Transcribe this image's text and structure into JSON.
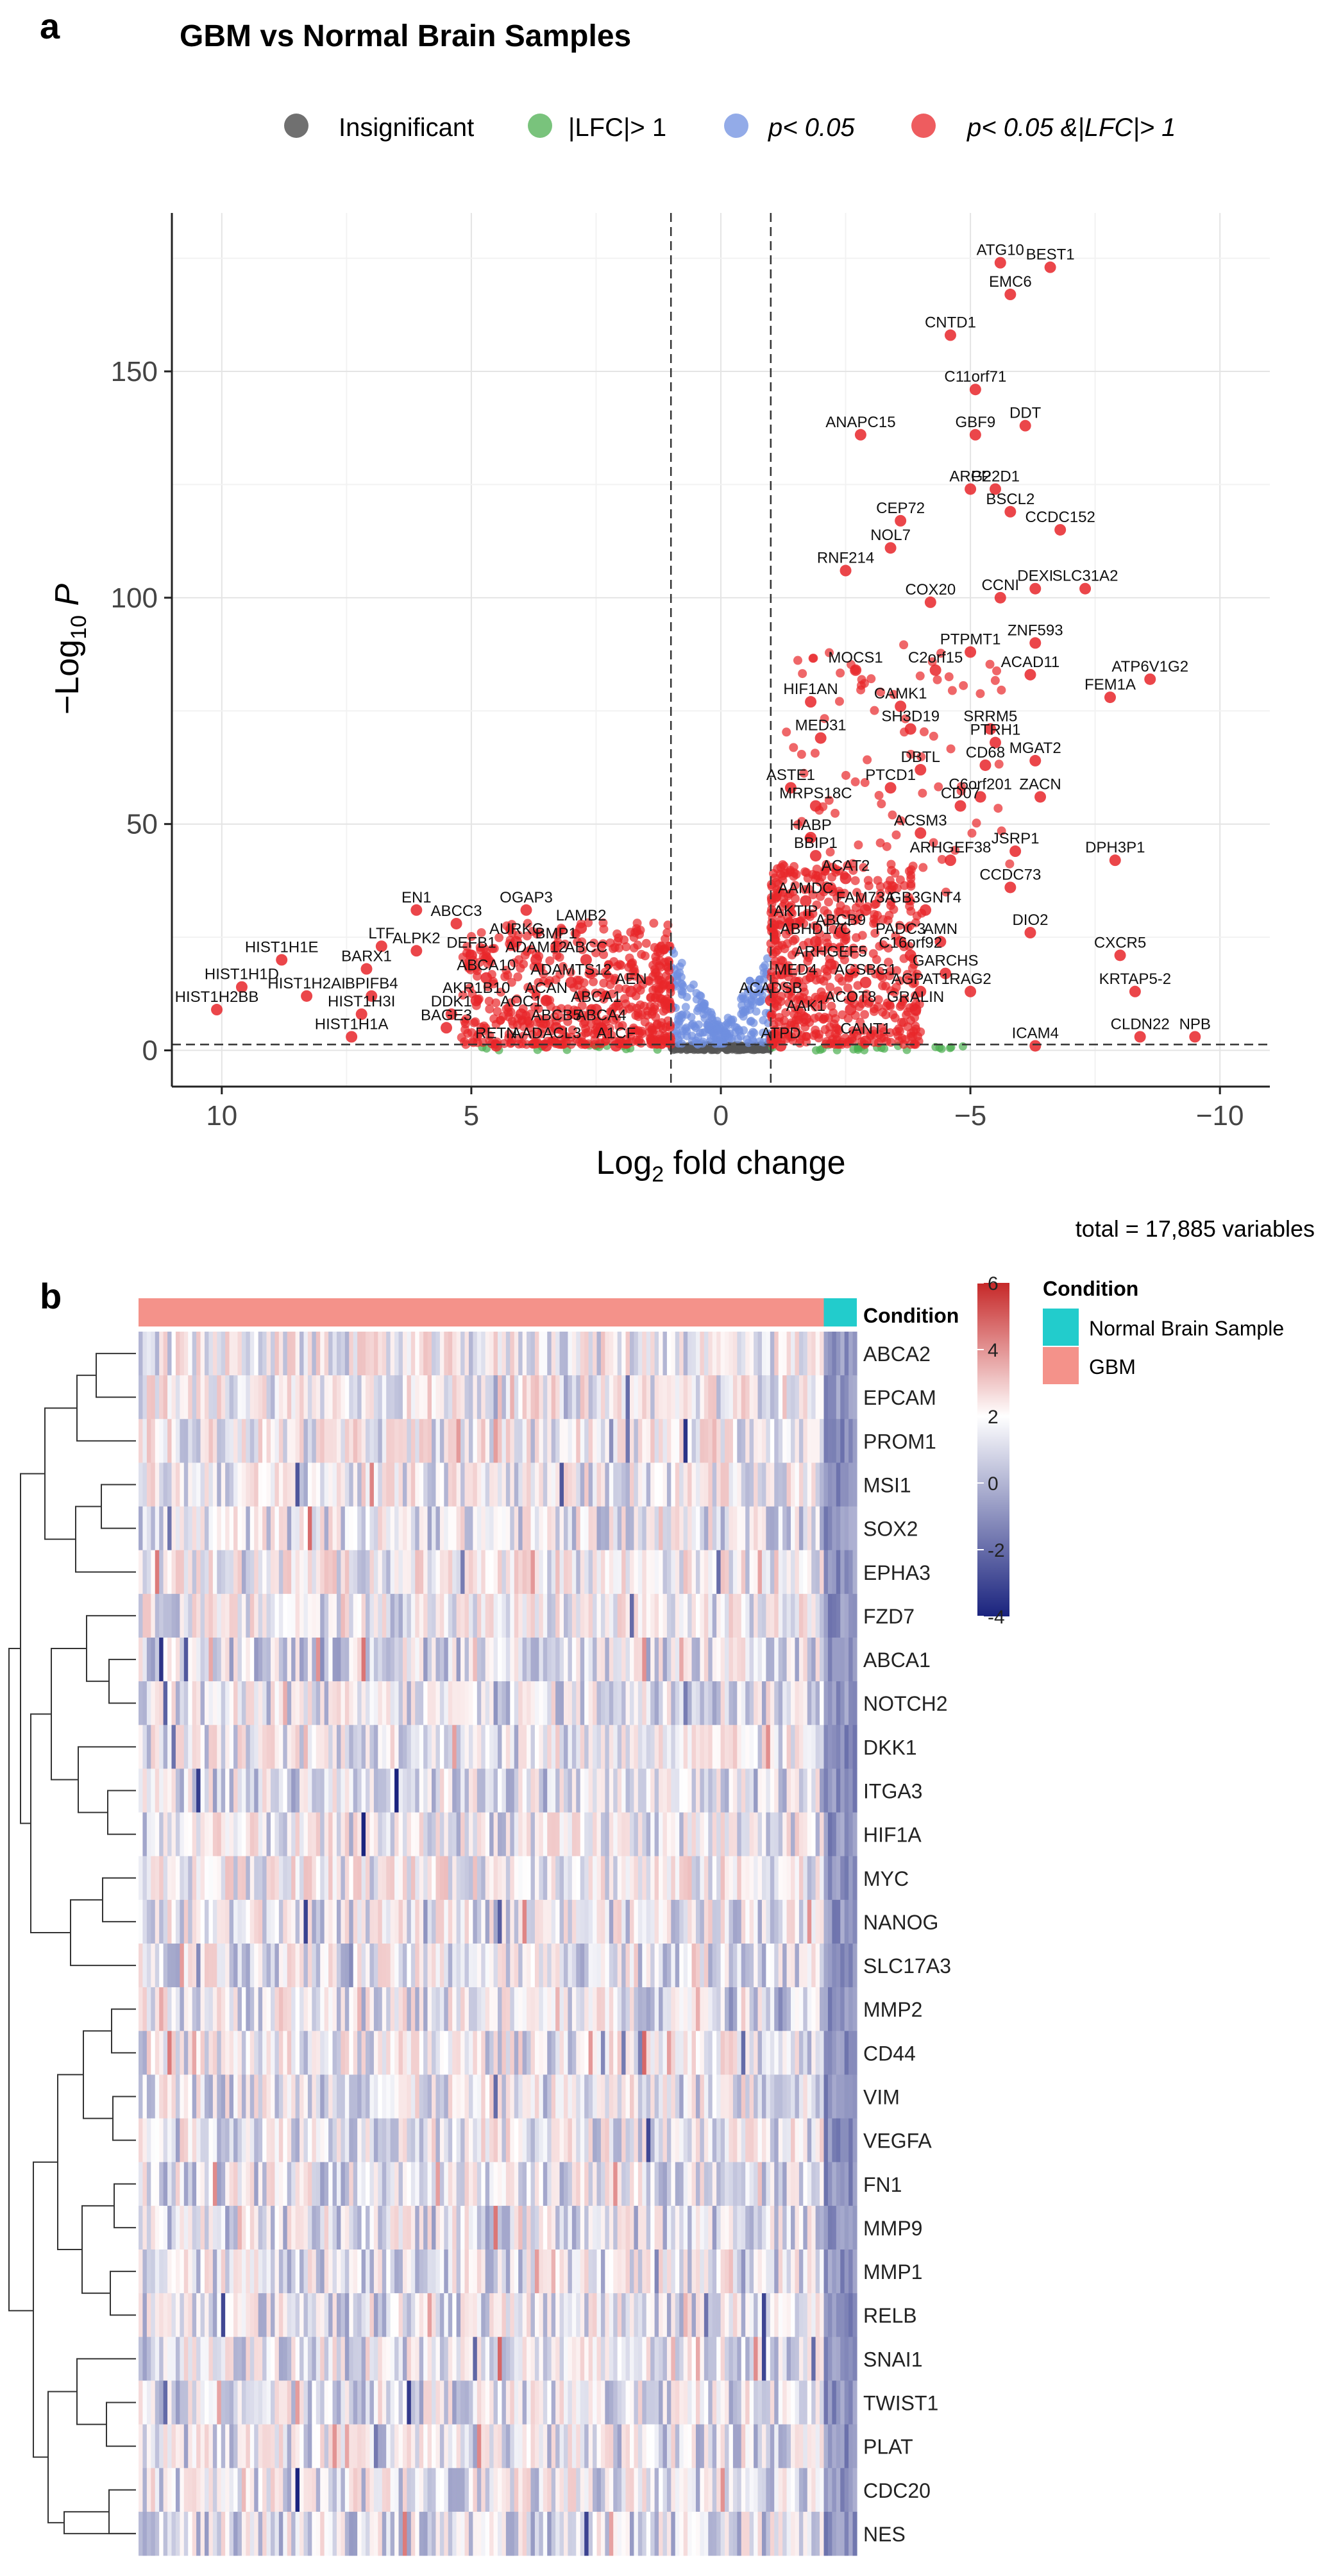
{
  "panel_a": {
    "letter": "a",
    "title": "GBM vs Normal Brain Samples",
    "legend": [
      {
        "label": "Insignificant",
        "color": "#606060"
      },
      {
        "label": "|LFC|> 1",
        "color": "#4caf50"
      },
      {
        "label": "p< 0.05",
        "color": "#6f8fe0"
      },
      {
        "label": "p< 0.05 &|LFC|> 1",
        "color": "#e8262a"
      }
    ],
    "footer": "total = 17,885 variables"
  },
  "panel_b": {
    "letter": "b",
    "annotation_label": "Condition",
    "legend_title": "Condition",
    "legend": [
      {
        "label": "Normal Brain Sample",
        "color": "#22cccc"
      },
      {
        "label": "GBM",
        "color": "#f4928a"
      }
    ],
    "scale_ticks": [
      "6",
      "4",
      "2",
      "0",
      "-2",
      "-4"
    ]
  },
  "chart_data": [
    {
      "type": "scatter",
      "subtype": "volcano",
      "title": "GBM vs Normal Brain Samples",
      "xlabel": "Log2 fold change",
      "ylabel": "-Log10 P",
      "xlim": [
        11,
        -11
      ],
      "ylim": [
        -8,
        185
      ],
      "xticks": [
        10,
        5,
        0,
        -5,
        -10
      ],
      "yticks": [
        0,
        50,
        100,
        150
      ],
      "cutoff_lines": {
        "x": [
          1,
          -1
        ],
        "y": 1.3
      },
      "grid": true,
      "legend_position": "top",
      "labeled_points": [
        {
          "label": "ATG10",
          "x": -5.6,
          "y": 174
        },
        {
          "label": "BEST1",
          "x": -6.6,
          "y": 173
        },
        {
          "label": "EMC6",
          "x": -5.8,
          "y": 167
        },
        {
          "label": "CNTD1",
          "x": -4.6,
          "y": 158
        },
        {
          "label": "C11orf71",
          "x": -5.1,
          "y": 146
        },
        {
          "label": "ANAPC15",
          "x": -2.8,
          "y": 136
        },
        {
          "label": "GBF9",
          "x": -5.1,
          "y": 136
        },
        {
          "label": "DDT",
          "x": -6.1,
          "y": 138
        },
        {
          "label": "ARG2",
          "x": -5.0,
          "y": 124
        },
        {
          "label": "PP2D1",
          "x": -5.5,
          "y": 124
        },
        {
          "label": "BSCL2",
          "x": -5.8,
          "y": 119
        },
        {
          "label": "CEP72",
          "x": -3.6,
          "y": 117
        },
        {
          "label": "CCDC152",
          "x": -6.8,
          "y": 115
        },
        {
          "label": "NOL7",
          "x": -3.4,
          "y": 111
        },
        {
          "label": "RNF214",
          "x": -2.5,
          "y": 106
        },
        {
          "label": "DEXI",
          "x": -6.3,
          "y": 102
        },
        {
          "label": "SLC31A2",
          "x": -7.3,
          "y": 102
        },
        {
          "label": "COX20",
          "x": -4.2,
          "y": 99
        },
        {
          "label": "CCNI",
          "x": -5.6,
          "y": 100
        },
        {
          "label": "ZNF593",
          "x": -6.3,
          "y": 90
        },
        {
          "label": "PTPMT1",
          "x": -5.0,
          "y": 88
        },
        {
          "label": "MOCS1",
          "x": -2.7,
          "y": 84
        },
        {
          "label": "C2orf15",
          "x": -4.3,
          "y": 84
        },
        {
          "label": "ACAD11",
          "x": -6.2,
          "y": 83
        },
        {
          "label": "ATP6V1G2",
          "x": -8.6,
          "y": 82
        },
        {
          "label": "FEM1A",
          "x": -7.8,
          "y": 78
        },
        {
          "label": "HIF1AN",
          "x": -1.8,
          "y": 77
        },
        {
          "label": "CAMK1",
          "x": -3.6,
          "y": 76
        },
        {
          "label": "SH3D19",
          "x": -3.8,
          "y": 71
        },
        {
          "label": "SRRM5",
          "x": -5.4,
          "y": 71
        },
        {
          "label": "MED31",
          "x": -2.0,
          "y": 69
        },
        {
          "label": "PTRH1",
          "x": -5.5,
          "y": 68
        },
        {
          "label": "MGAT2",
          "x": -6.3,
          "y": 64
        },
        {
          "label": "DBTL",
          "x": -4.0,
          "y": 62
        },
        {
          "label": "CD68",
          "x": -5.3,
          "y": 63
        },
        {
          "label": "ASTE1",
          "x": -1.4,
          "y": 58
        },
        {
          "label": "PTCD1",
          "x": -3.4,
          "y": 58
        },
        {
          "label": "C6orf201",
          "x": -5.2,
          "y": 56
        },
        {
          "label": "ZACN",
          "x": -6.4,
          "y": 56
        },
        {
          "label": "MRPS18C",
          "x": -1.9,
          "y": 54
        },
        {
          "label": "CD07",
          "x": -4.8,
          "y": 54
        },
        {
          "label": "ACSM3",
          "x": -4.0,
          "y": 48
        },
        {
          "label": "HABP",
          "x": -1.8,
          "y": 47
        },
        {
          "label": "BBIP1",
          "x": -1.9,
          "y": 43
        },
        {
          "label": "ARHGEF38",
          "x": -4.6,
          "y": 42
        },
        {
          "label": "JSRP1",
          "x": -5.9,
          "y": 44
        },
        {
          "label": "DPH3P1",
          "x": -7.9,
          "y": 42
        },
        {
          "label": "ACAT2",
          "x": -2.5,
          "y": 38
        },
        {
          "label": "CCDC73",
          "x": -5.8,
          "y": 36
        },
        {
          "label": "AAMDC",
          "x": -1.7,
          "y": 33
        },
        {
          "label": "FAM73A",
          "x": -2.9,
          "y": 31
        },
        {
          "label": "GB3GNT4",
          "x": -4.1,
          "y": 31
        },
        {
          "label": "AKTIP",
          "x": -1.5,
          "y": 28
        },
        {
          "label": "ABCB9",
          "x": -2.4,
          "y": 26
        },
        {
          "label": "DIO2",
          "x": -6.2,
          "y": 26
        },
        {
          "label": "ABHD17C",
          "x": -1.9,
          "y": 24
        },
        {
          "label": "PADC3",
          "x": -3.6,
          "y": 24
        },
        {
          "label": "AMN",
          "x": -4.4,
          "y": 24
        },
        {
          "label": "C16orf92",
          "x": -3.8,
          "y": 21
        },
        {
          "label": "ARHGEF5",
          "x": -2.2,
          "y": 19
        },
        {
          "label": "GARCHS",
          "x": -4.5,
          "y": 17
        },
        {
          "label": "CXCR5",
          "x": -8.0,
          "y": 21
        },
        {
          "label": "MED4",
          "x": -1.5,
          "y": 15
        },
        {
          "label": "ACSBG1",
          "x": -2.9,
          "y": 15
        },
        {
          "label": "AGPAT1",
          "x": -4.0,
          "y": 13
        },
        {
          "label": "RAG2",
          "x": -5.0,
          "y": 13
        },
        {
          "label": "KRTAP5-2",
          "x": -8.3,
          "y": 13
        },
        {
          "label": "ACADSB",
          "x": -1.0,
          "y": 11
        },
        {
          "label": "ACOT8",
          "x": -2.6,
          "y": 9
        },
        {
          "label": "GRALIN",
          "x": -3.9,
          "y": 9
        },
        {
          "label": "AAK1",
          "x": -1.7,
          "y": 7
        },
        {
          "label": "CLDN22",
          "x": -8.4,
          "y": 3
        },
        {
          "label": "NPB",
          "x": -9.5,
          "y": 3
        },
        {
          "label": "ICAM4",
          "x": -6.3,
          "y": 1
        },
        {
          "label": "CANT1",
          "x": -2.9,
          "y": 2
        },
        {
          "label": "ATPD",
          "x": -1.2,
          "y": 1
        },
        {
          "label": "OGAP3",
          "x": 3.9,
          "y": 31
        },
        {
          "label": "EN1",
          "x": 6.1,
          "y": 31
        },
        {
          "label": "ABCC3",
          "x": 5.3,
          "y": 28
        },
        {
          "label": "LAMB2",
          "x": 2.8,
          "y": 27
        },
        {
          "label": "ALPK2",
          "x": 6.1,
          "y": 22
        },
        {
          "label": "AURKC",
          "x": 4.1,
          "y": 24
        },
        {
          "label": "BMP1",
          "x": 3.3,
          "y": 23
        },
        {
          "label": "LTF",
          "x": 6.8,
          "y": 23
        },
        {
          "label": "DEFB1",
          "x": 5.0,
          "y": 21
        },
        {
          "label": "ADAM12",
          "x": 3.7,
          "y": 20
        },
        {
          "label": "ABCC",
          "x": 2.7,
          "y": 20
        },
        {
          "label": "HIST1H1E",
          "x": 8.8,
          "y": 20
        },
        {
          "label": "BARX1",
          "x": 7.1,
          "y": 18
        },
        {
          "label": "ABCA10",
          "x": 4.7,
          "y": 16
        },
        {
          "label": "ADAMTS12",
          "x": 3.0,
          "y": 15
        },
        {
          "label": "HIST1H1D",
          "x": 9.6,
          "y": 14
        },
        {
          "label": "AEN",
          "x": 1.8,
          "y": 13
        },
        {
          "label": "HIST1H2AI",
          "x": 8.3,
          "y": 12
        },
        {
          "label": "BPIFB4",
          "x": 7.0,
          "y": 12
        },
        {
          "label": "AKR1B10",
          "x": 4.9,
          "y": 11
        },
        {
          "label": "ACAN",
          "x": 3.5,
          "y": 11
        },
        {
          "label": "ABCA1",
          "x": 2.5,
          "y": 9
        },
        {
          "label": "HIST1H2BB",
          "x": 10.1,
          "y": 9
        },
        {
          "label": "HIST1H3I",
          "x": 7.2,
          "y": 8
        },
        {
          "label": "DDK1",
          "x": 5.4,
          "y": 8
        },
        {
          "label": "AOC1",
          "x": 4.0,
          "y": 8
        },
        {
          "label": "BAGE3",
          "x": 5.5,
          "y": 5
        },
        {
          "label": "ABCB5",
          "x": 3.3,
          "y": 5
        },
        {
          "label": "ABCA4",
          "x": 2.4,
          "y": 5
        },
        {
          "label": "HIST1H1A",
          "x": 7.4,
          "y": 3
        },
        {
          "label": "RETN",
          "x": 4.5,
          "y": 1
        },
        {
          "label": "AADACL3",
          "x": 3.5,
          "y": 1
        },
        {
          "label": "A1CF",
          "x": 2.1,
          "y": 1
        }
      ]
    },
    {
      "type": "heatmap",
      "rows": [
        "ABCA2",
        "EPCAM",
        "PROM1",
        "MSI1",
        "SOX2",
        "EPHA3",
        "FZD7",
        "ABCA1",
        "NOTCH2",
        "DKK1",
        "ITGA3",
        "HIF1A",
        "MYC",
        "NANOG",
        "SLC17A3",
        "MMP2",
        "CD44",
        "VIM",
        "VEGFA",
        "FN1",
        "MMP9",
        "MMP1",
        "RELB",
        "SNAI1",
        "TWIST1",
        "PLAT",
        "CDC20",
        "NES"
      ],
      "column_annotation": {
        "name": "Condition",
        "groups": [
          {
            "label": "GBM",
            "count": 166
          },
          {
            "label": "Normal Brain Sample",
            "count": 8
          }
        ]
      },
      "color_scale": {
        "min": -4,
        "max": 6,
        "low": "#1a237e",
        "mid": "#ffffff",
        "high": "#c62828",
        "ticks": [
          6,
          4,
          2,
          0,
          -2,
          -4
        ]
      },
      "row_dendrogram": true,
      "note": "cell values are standardized expression; individual cells not legible"
    }
  ]
}
